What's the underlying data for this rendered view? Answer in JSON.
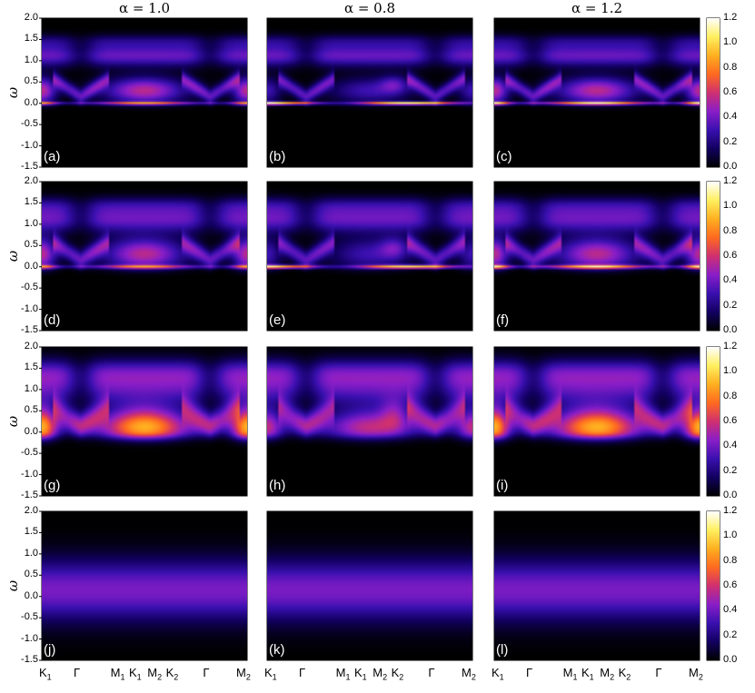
{
  "chart_data": {
    "type": "heatmap",
    "column_titles": [
      "α = 1.0",
      "α = 0.8",
      "α = 1.2"
    ],
    "column_alpha": [
      1.0,
      0.8,
      1.2
    ],
    "ylabel": "ω",
    "ylim": [
      -1.5,
      2.0
    ],
    "yticks": [
      "2.0",
      "1.5",
      "1.0",
      "0.5",
      "0.0",
      "-0.5",
      "-1.0",
      "-1.5"
    ],
    "ytick_values": [
      2.0,
      1.5,
      1.0,
      0.5,
      0.0,
      -0.5,
      -1.0,
      -1.5
    ],
    "xticks": [
      {
        "main": "K",
        "sub": "1"
      },
      {
        "main": "Γ",
        "sub": ""
      },
      {
        "main": "M",
        "sub": "1"
      },
      {
        "main": "K",
        "sub": "1"
      },
      {
        "main": "M",
        "sub": "2"
      },
      {
        "main": "K",
        "sub": "2"
      },
      {
        "main": "Γ",
        "sub": ""
      },
      {
        "main": "M",
        "sub": "2"
      }
    ],
    "xtick_positions": [
      0.0,
      0.19,
      0.37,
      0.46,
      0.55,
      0.64,
      0.82,
      1.0
    ],
    "colorbar": {
      "range": [
        0.0,
        1.2
      ],
      "ticks": [
        "1.2",
        "1.0",
        "0.8",
        "0.6",
        "0.4",
        "0.2",
        "0.0"
      ],
      "tick_values": [
        1.2,
        1.0,
        0.8,
        0.6,
        0.4,
        0.2,
        0.0
      ],
      "colormap": [
        "#000000",
        "#120060",
        "#3a10b0",
        "#8a1ec8",
        "#d03070",
        "#ff6a20",
        "#ffb020",
        "#fff060",
        "#ffffff"
      ]
    },
    "panels": [
      {
        "label": "(a)",
        "row": 0,
        "col": 0,
        "band": "spinon",
        "broadening": 0.0
      },
      {
        "label": "(b)",
        "row": 0,
        "col": 1,
        "band": "spinon",
        "broadening": 0.0
      },
      {
        "label": "(c)",
        "row": 0,
        "col": 2,
        "band": "spinon",
        "broadening": 0.0
      },
      {
        "label": "(d)",
        "row": 1,
        "col": 0,
        "band": "spinon",
        "broadening": 0.1
      },
      {
        "label": "(e)",
        "row": 1,
        "col": 1,
        "band": "spinon",
        "broadening": 0.1
      },
      {
        "label": "(f)",
        "row": 1,
        "col": 2,
        "band": "spinon",
        "broadening": 0.1
      },
      {
        "label": "(g)",
        "row": 2,
        "col": 0,
        "band": "spinon",
        "broadening": 0.35
      },
      {
        "label": "(h)",
        "row": 2,
        "col": 1,
        "band": "spinon",
        "broadening": 0.35
      },
      {
        "label": "(i)",
        "row": 2,
        "col": 2,
        "band": "spinon",
        "broadening": 0.35
      },
      {
        "label": "(j)",
        "row": 3,
        "col": 0,
        "band": "diffuse",
        "broadening": 1.0
      },
      {
        "label": "(k)",
        "row": 3,
        "col": 1,
        "band": "diffuse",
        "broadening": 1.0
      },
      {
        "label": "(l)",
        "row": 3,
        "col": 2,
        "band": "diffuse",
        "broadening": 1.0
      }
    ]
  }
}
